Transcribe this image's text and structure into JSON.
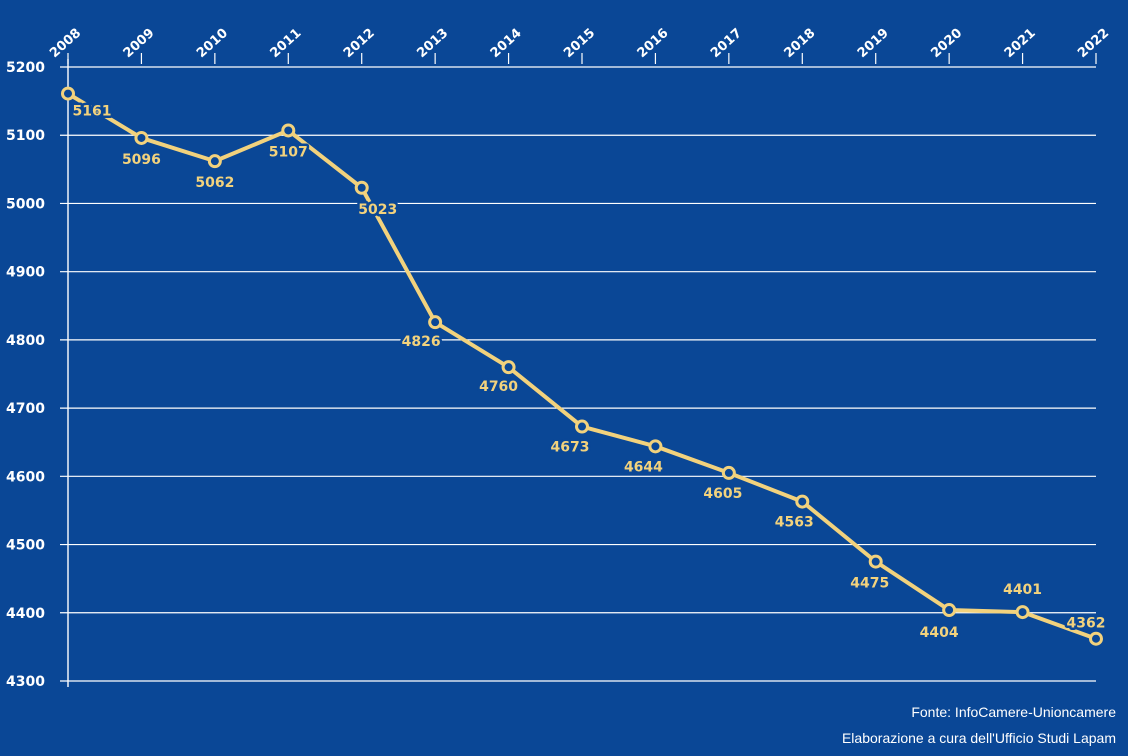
{
  "colors": {
    "background": "#0a4796",
    "series": "#f2d27d",
    "grid": "#ffffff",
    "text": "#ffffff"
  },
  "source": {
    "line1": "Fonte: InfoCamere-Unioncamere",
    "line2": "Elaborazione a cura dell'Ufficio Studi Lapam"
  },
  "chart_data": {
    "type": "line",
    "title": "",
    "xlabel": "",
    "ylabel": "",
    "x": [
      "2008",
      "2009",
      "2010",
      "2011",
      "2012",
      "2013",
      "2014",
      "2015",
      "2016",
      "2017",
      "2018",
      "2019",
      "2020",
      "2021",
      "2022"
    ],
    "series": [
      {
        "values": [
          5161,
          5096,
          5062,
          5107,
          5023,
          4826,
          4760,
          4673,
          4644,
          4605,
          4563,
          4475,
          4404,
          4401,
          4362
        ]
      }
    ],
    "ylim": [
      4300,
      5200
    ],
    "yticks": [
      4300,
      4400,
      4500,
      4600,
      4700,
      4800,
      4900,
      5000,
      5100,
      5200
    ],
    "x_axis_position": "top",
    "grid": true,
    "legend": "none",
    "data_labels": true
  }
}
